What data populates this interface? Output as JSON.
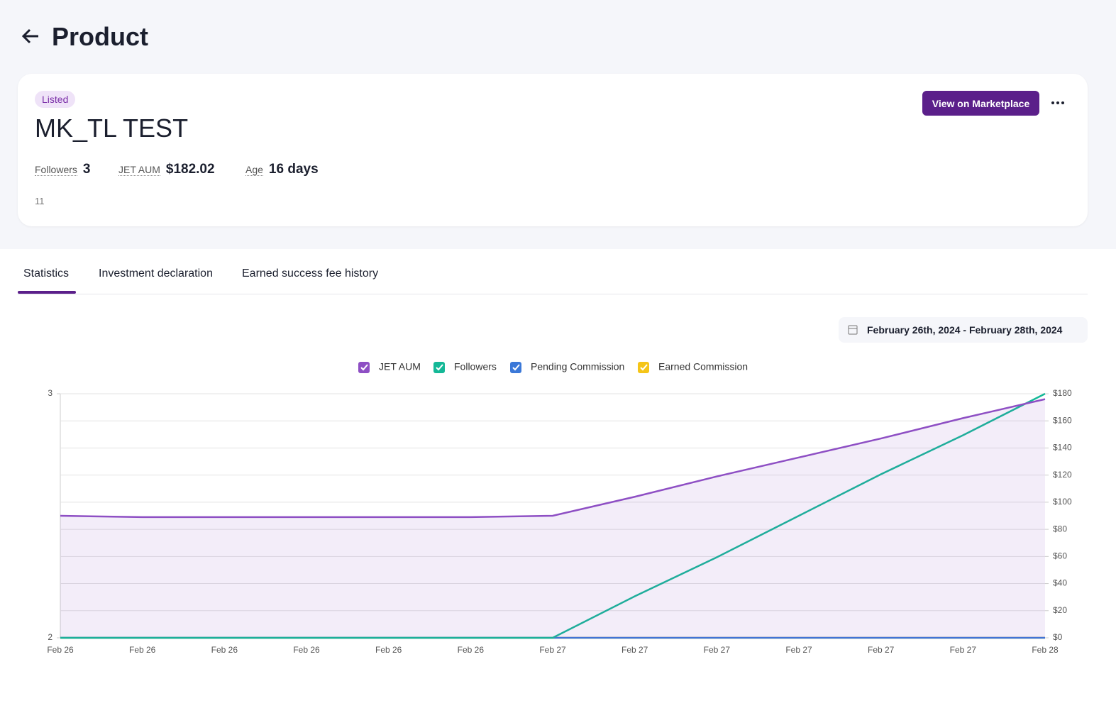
{
  "header": {
    "title": "Product"
  },
  "card": {
    "badge": "Listed",
    "name": "MK_TL TEST",
    "button": "View on Marketplace",
    "stats": [
      {
        "label": "Followers",
        "value": "3"
      },
      {
        "label": "JET AUM",
        "value": "$182.02"
      },
      {
        "label": "Age",
        "value": "16 days"
      }
    ],
    "footnote": "11"
  },
  "tabs": [
    "Statistics",
    "Investment declaration",
    "Earned success fee history"
  ],
  "date_range": "February 26th, 2024 - February 28th, 2024",
  "chart_data": {
    "type": "line",
    "categories": [
      "Feb 26",
      "Feb 26",
      "Feb 26",
      "Feb 26",
      "Feb 26",
      "Feb 26",
      "Feb 27",
      "Feb 27",
      "Feb 27",
      "Feb 27",
      "Feb 27",
      "Feb 27",
      "Feb 28"
    ],
    "ylim": [
      2,
      3
    ],
    "yticks": [
      2,
      3
    ],
    "y2lim": [
      0,
      180
    ],
    "y2ticks": [
      {
        "value": 0,
        "label": "$0"
      },
      {
        "value": 20,
        "label": "$20"
      },
      {
        "value": 40,
        "label": "$40"
      },
      {
        "value": 60,
        "label": "$60"
      },
      {
        "value": 80,
        "label": "$80"
      },
      {
        "value": 100,
        "label": "$100"
      },
      {
        "value": 120,
        "label": "$120"
      },
      {
        "value": 140,
        "label": "$140"
      },
      {
        "value": 160,
        "label": "$160"
      },
      {
        "value": 180,
        "label": "$180"
      }
    ],
    "grid": true,
    "series": [
      {
        "name": "JET AUM",
        "color": "#8e4fc4",
        "axis": "y2",
        "area": true,
        "values": [
          90,
          89,
          89,
          89,
          89,
          89,
          90,
          104,
          119,
          133,
          147,
          162,
          176
        ]
      },
      {
        "name": "Followers",
        "color": "#14b897",
        "values": [
          2,
          2,
          2,
          2,
          2,
          2,
          2,
          2.17,
          2.33,
          2.5,
          2.67,
          2.83,
          3
        ]
      },
      {
        "name": "Pending Commission",
        "color": "#3b78d8",
        "axis": "y2",
        "values": [
          0,
          0,
          0,
          0,
          0,
          0,
          0,
          0,
          0,
          0,
          0,
          0,
          0
        ]
      },
      {
        "name": "Earned Commission",
        "color": "#f5c518",
        "axis": "y2",
        "values": [
          0,
          0,
          0,
          0,
          0,
          0,
          0,
          0,
          0,
          0,
          0,
          0,
          0
        ]
      }
    ]
  }
}
